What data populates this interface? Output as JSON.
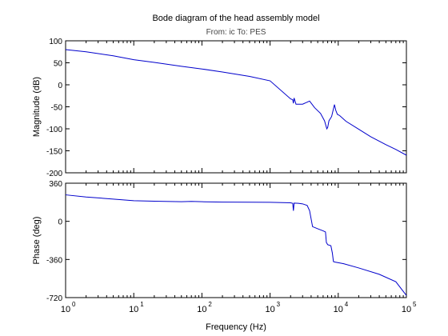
{
  "figure": {
    "title": "Bode diagram of the head assembly model",
    "subtitle": "From: ic  To: PES"
  },
  "chart_data": {
    "type": "line",
    "xscale": "log",
    "xlabel": "Frequency  (Hz)",
    "xlim": [
      1,
      100000
    ],
    "x_ticks": [
      {
        "base": "10",
        "exp": "0"
      },
      {
        "base": "10",
        "exp": "1"
      },
      {
        "base": "10",
        "exp": "2"
      },
      {
        "base": "10",
        "exp": "3"
      },
      {
        "base": "10",
        "exp": "4"
      },
      {
        "base": "10",
        "exp": "5"
      }
    ],
    "color": "#0000cc",
    "panels": [
      {
        "id": "magnitude",
        "ylabel": "Magnitude (dB)",
        "ylim": [
          -200,
          100
        ],
        "yticks": [
          "100",
          "50",
          "0",
          "-50",
          "-100",
          "-150",
          "-200"
        ],
        "ytick_values": [
          100,
          50,
          0,
          -50,
          -100,
          -150,
          -200
        ],
        "series": [
          {
            "x": [
              1,
              2,
              5,
              10,
              20,
              50,
              100,
              200,
              500,
              1000,
              2000,
              2150,
              2200,
              2250,
              2400,
              3000,
              3800,
              4500,
              5500,
              6300,
              6800,
              7000,
              7300,
              8000,
              8800,
              9200,
              9700,
              10500,
              13000,
              20000,
              30000,
              50000,
              70000,
              100000
            ],
            "y": [
              80,
              75,
              66,
              57,
              51,
              42,
              36,
              29,
              19,
              9,
              -32,
              -34,
              -42,
              -30,
              -44,
              -44,
              -37,
              -52,
              -65,
              -82,
              -100,
              -97,
              -82,
              -72,
              -45,
              -58,
              -67,
              -70,
              -83,
              -101,
              -118,
              -136,
              -147,
              -160
            ]
          }
        ]
      },
      {
        "id": "phase",
        "ylabel": "Phase (deg)",
        "ylim": [
          -720,
          360
        ],
        "yticks": [
          "360",
          "0",
          "-360",
          "-720"
        ],
        "ytick_values": [
          360,
          0,
          -360,
          -720
        ],
        "series": [
          {
            "x": [
              1,
              2,
              5,
              10,
              20,
              50,
              70,
              100,
              200,
              500,
              1000,
              2000,
              2150,
              2200,
              2250,
              2600,
              3000,
              3500,
              3800,
              4200,
              5000,
              6000,
              6500,
              6700,
              7000,
              7800,
              8200,
              8500,
              9000,
              12000,
              20000,
              40000,
              70000,
              100000
            ],
            "y": [
              250,
              230,
              210,
              195,
              190,
              185,
              188,
              185,
              182,
              181,
              180,
              175,
              170,
              100,
              172,
              170,
              165,
              150,
              100,
              -50,
              -70,
              -90,
              -100,
              -200,
              -220,
              -230,
              -300,
              -380,
              -385,
              -400,
              -440,
              -500,
              -570,
              -700
            ]
          }
        ]
      }
    ]
  }
}
